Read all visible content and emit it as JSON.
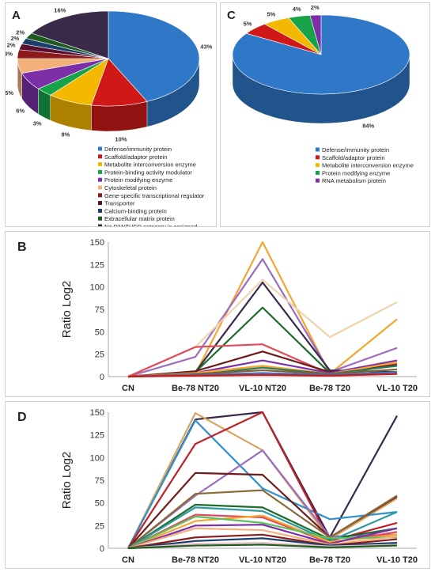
{
  "chart_data": [
    {
      "panel": "A",
      "type": "pie",
      "categories": [
        "Defense/immunity protein",
        "Scaffold/adaptor protein",
        "Metabolite interconversion enzyme",
        "Protein-binding activity modulator",
        "Protein modifying enzyme",
        "Cytoskeletal protein",
        "Gene-specific transcriptional regulator",
        "Transporter",
        "Calcium-binding protein",
        "Extracellular matrix protein",
        "No PANTHER category is assigned"
      ],
      "values": [
        43,
        10,
        8,
        3,
        6,
        5,
        3,
        2,
        2,
        2,
        16
      ],
      "labels": [
        "43%",
        "10%",
        "8%",
        "3%",
        "6%",
        "5%",
        "3%",
        "2%",
        "2%",
        "2%",
        "16%"
      ],
      "colors": [
        "#2f78c7",
        "#d11818",
        "#f5b800",
        "#17a34a",
        "#7c2fa8",
        "#f4b07a",
        "#8b1a1a",
        "#5a1030",
        "#1c3e6b",
        "#1f5a1f",
        "#3a2a4a"
      ]
    },
    {
      "panel": "C",
      "type": "pie",
      "categories": [
        "Defense/immunity protein",
        "Scaffold/adaptor protein",
        "Metabolite interconversion enzyme",
        "Protein modifying enzyme",
        "RNA metabolism protein"
      ],
      "values": [
        84,
        5,
        5,
        4,
        2
      ],
      "labels": [
        "84%",
        "5%",
        "5%",
        "4%",
        "2%"
      ],
      "colors": [
        "#2f78c7",
        "#d11818",
        "#f5b800",
        "#17a34a",
        "#7c2fa8"
      ]
    },
    {
      "panel": "B",
      "type": "line",
      "ylabel": "Ratio Log2",
      "ylim": [
        0,
        150
      ],
      "yticks": [
        0,
        25,
        50,
        75,
        100,
        125,
        150
      ],
      "categories": [
        "CN",
        "Be-78 NT20",
        "VL-10 NT20",
        "Be-78 T20",
        "VL-10 T20"
      ],
      "series": [
        {
          "values": [
            0,
            3,
            150,
            3,
            64
          ],
          "color": "#f5a531"
        },
        {
          "values": [
            0,
            22,
            131,
            5,
            32
          ],
          "color": "#9b6cc0"
        },
        {
          "values": [
            0,
            5,
            105,
            7,
            5
          ],
          "color": "#3a2a4a"
        },
        {
          "values": [
            0,
            33,
            108,
            44,
            83
          ],
          "color": "#f1d3b0"
        },
        {
          "values": [
            0,
            5,
            77,
            4,
            12
          ],
          "color": "#1b6b2a"
        },
        {
          "values": [
            0,
            33,
            36,
            3,
            15
          ],
          "color": "#e24a5a"
        },
        {
          "values": [
            0,
            6,
            28,
            5,
            13
          ],
          "color": "#6e1a1a"
        },
        {
          "values": [
            0,
            4,
            18,
            4,
            18
          ],
          "color": "#7c2fa8"
        },
        {
          "values": [
            0,
            4,
            12,
            3,
            16
          ],
          "color": "#f5a531"
        },
        {
          "values": [
            0,
            2,
            10,
            3,
            12
          ],
          "color": "#2c7a5c"
        },
        {
          "values": [
            0,
            3,
            7,
            3,
            8
          ],
          "color": "#8a5c2b"
        },
        {
          "values": [
            0,
            2,
            4,
            2,
            5
          ],
          "color": "#2f78c7"
        },
        {
          "values": [
            0,
            1,
            2,
            1,
            3
          ],
          "color": "#d11818"
        }
      ]
    },
    {
      "panel": "D",
      "type": "line",
      "ylabel": "Ratio Log2",
      "ylim": [
        0,
        150
      ],
      "yticks": [
        0,
        25,
        50,
        75,
        100,
        125,
        150
      ],
      "categories": [
        "CN",
        "Be-78 NT20",
        "VL-10 NT20",
        "Be-78 T20",
        "VL-10 T20"
      ],
      "series": [
        {
          "values": [
            0,
            142,
            150,
            12,
            146
          ],
          "color": "#3a2a4a"
        },
        {
          "values": [
            0,
            149,
            108,
            10,
            55
          ],
          "color": "#d9a560"
        },
        {
          "values": [
            0,
            141,
            66,
            32,
            40
          ],
          "color": "#2f8fd0"
        },
        {
          "values": [
            0,
            115,
            150,
            8,
            28
          ],
          "color": "#c0202a"
        },
        {
          "values": [
            0,
            58,
            108,
            13,
            15
          ],
          "color": "#9b6cc0"
        },
        {
          "values": [
            0,
            83,
            81,
            12,
            57
          ],
          "color": "#6e1a1a"
        },
        {
          "values": [
            0,
            60,
            64,
            12,
            58
          ],
          "color": "#8a6a3a"
        },
        {
          "values": [
            0,
            48,
            45,
            10,
            22
          ],
          "color": "#1b6b2a"
        },
        {
          "values": [
            0,
            45,
            41,
            8,
            40
          ],
          "color": "#2c9aa0"
        },
        {
          "values": [
            0,
            37,
            34,
            6,
            18
          ],
          "color": "#e24a5a"
        },
        {
          "values": [
            0,
            30,
            36,
            7,
            15
          ],
          "color": "#f5a531"
        },
        {
          "values": [
            0,
            35,
            28,
            11,
            12
          ],
          "color": "#5fbf5f"
        },
        {
          "values": [
            0,
            25,
            26,
            5,
            22
          ],
          "color": "#7c2fa8"
        },
        {
          "values": [
            0,
            22,
            20,
            4,
            13
          ],
          "color": "#f4b07a"
        },
        {
          "values": [
            0,
            12,
            15,
            3,
            10
          ],
          "color": "#8b1a1a"
        },
        {
          "values": [
            0,
            8,
            11,
            3,
            6
          ],
          "color": "#1c3e6b"
        },
        {
          "values": [
            0,
            5,
            6,
            2,
            4
          ],
          "color": "#e8c0c8"
        },
        {
          "values": [
            0,
            3,
            4,
            1,
            3
          ],
          "color": "#1f5a1f"
        }
      ]
    }
  ]
}
